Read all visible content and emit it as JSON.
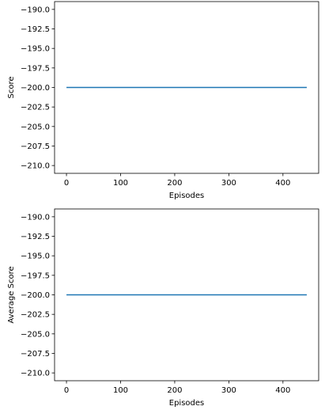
{
  "chart_data": [
    {
      "type": "line",
      "title": "",
      "xlabel": "Episodes",
      "ylabel": "Score",
      "xlim": [
        -22,
        466
      ],
      "ylim": [
        -211,
        -189
      ],
      "xticks": [
        0,
        100,
        200,
        300,
        400
      ],
      "yticks": [
        -190.0,
        -192.5,
        -195.0,
        -197.5,
        -200.0,
        -202.5,
        -205.0,
        -207.5,
        -210.0
      ],
      "xtick_labels": [
        "0",
        "100",
        "200",
        "300",
        "400"
      ],
      "ytick_labels": [
        "−190.0",
        "−192.5",
        "−195.0",
        "−197.5",
        "−200.0",
        "−202.5",
        "−205.0",
        "−207.5",
        "−210.0"
      ],
      "grid": false,
      "series": [
        {
          "color": "#1f77b4",
          "x": [
            0,
            444
          ],
          "y": [
            -200,
            -200
          ]
        }
      ]
    },
    {
      "type": "line",
      "title": "",
      "xlabel": "Episodes",
      "ylabel": "Average Score",
      "xlim": [
        -22,
        466
      ],
      "ylim": [
        -211,
        -189
      ],
      "xticks": [
        0,
        100,
        200,
        300,
        400
      ],
      "yticks": [
        -190.0,
        -192.5,
        -195.0,
        -197.5,
        -200.0,
        -202.5,
        -205.0,
        -207.5,
        -210.0
      ],
      "xtick_labels": [
        "0",
        "100",
        "200",
        "300",
        "400"
      ],
      "ytick_labels": [
        "−190.0",
        "−192.5",
        "−195.0",
        "−197.5",
        "−200.0",
        "−202.5",
        "−205.0",
        "−207.5",
        "−210.0"
      ],
      "grid": false,
      "series": [
        {
          "color": "#1f77b4",
          "x": [
            0,
            444
          ],
          "y": [
            -200,
            -200
          ]
        }
      ]
    }
  ]
}
